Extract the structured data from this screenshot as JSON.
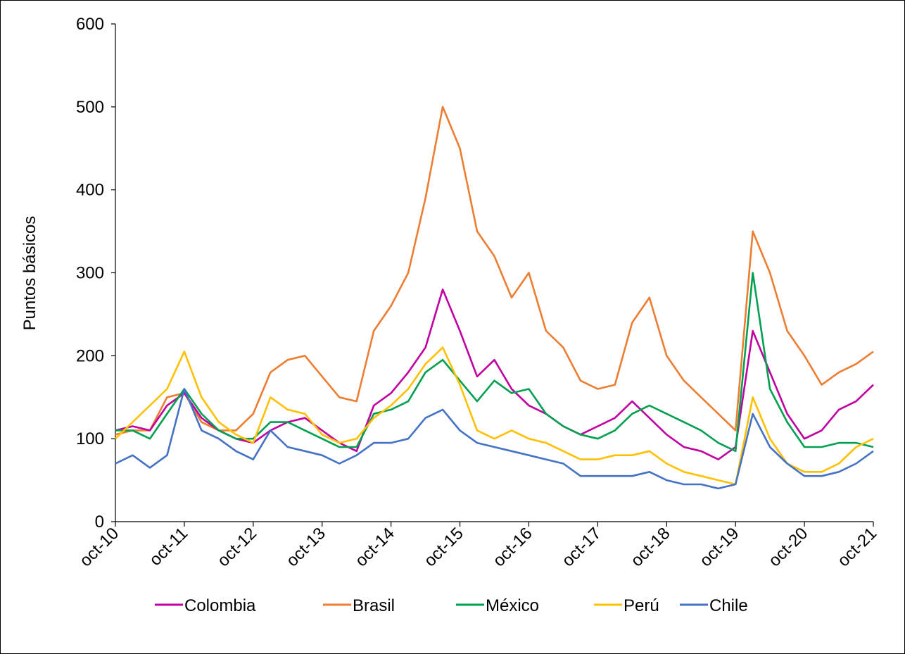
{
  "chart_data": {
    "type": "line",
    "title": "",
    "xlabel": "",
    "ylabel": "Puntos básicos",
    "ylim": [
      0,
      600
    ],
    "yticks": [
      0,
      100,
      200,
      300,
      400,
      500,
      600
    ],
    "xlim": [
      "2010-10",
      "2021-10"
    ],
    "xtick_labels": [
      "oct-10",
      "oct-11",
      "oct-12",
      "oct-13",
      "oct-14",
      "oct-15",
      "oct-16",
      "oct-17",
      "oct-18",
      "oct-19",
      "oct-20",
      "oct-21"
    ],
    "grid": false,
    "legend_position": "bottom",
    "x": [
      "2010-10",
      "2011-01",
      "2011-04",
      "2011-07",
      "2011-10",
      "2012-01",
      "2012-04",
      "2012-07",
      "2012-10",
      "2013-01",
      "2013-04",
      "2013-07",
      "2013-10",
      "2014-01",
      "2014-04",
      "2014-07",
      "2014-10",
      "2015-01",
      "2015-04",
      "2015-07",
      "2015-10",
      "2016-01",
      "2016-04",
      "2016-07",
      "2016-10",
      "2017-01",
      "2017-04",
      "2017-07",
      "2017-10",
      "2018-01",
      "2018-04",
      "2018-07",
      "2018-10",
      "2019-01",
      "2019-04",
      "2019-07",
      "2019-10",
      "2020-01",
      "2020-04",
      "2020-07",
      "2020-10",
      "2021-01",
      "2021-04",
      "2021-07",
      "2021-10"
    ],
    "series": [
      {
        "name": "Colombia",
        "color": "#C000A0",
        "values": [
          110,
          115,
          110,
          140,
          155,
          125,
          110,
          100,
          95,
          110,
          120,
          125,
          110,
          95,
          85,
          140,
          155,
          180,
          210,
          280,
          230,
          175,
          195,
          160,
          140,
          130,
          115,
          105,
          115,
          125,
          145,
          125,
          105,
          90,
          85,
          75,
          90,
          230,
          180,
          130,
          100,
          110,
          135,
          145,
          165
        ]
      },
      {
        "name": "Brasil",
        "color": "#ED7D31",
        "values": [
          105,
          110,
          110,
          150,
          155,
          120,
          110,
          110,
          130,
          180,
          195,
          200,
          175,
          150,
          145,
          230,
          260,
          300,
          390,
          500,
          450,
          350,
          320,
          270,
          300,
          230,
          210,
          170,
          160,
          165,
          240,
          270,
          200,
          170,
          150,
          130,
          110,
          350,
          300,
          230,
          200,
          165,
          180,
          190,
          205
        ]
      },
      {
        "name": "México",
        "color": "#00A050",
        "values": [
          110,
          110,
          100,
          130,
          160,
          130,
          110,
          100,
          100,
          120,
          120,
          110,
          100,
          90,
          90,
          130,
          135,
          145,
          180,
          195,
          170,
          145,
          170,
          155,
          160,
          130,
          115,
          105,
          100,
          110,
          130,
          140,
          130,
          120,
          110,
          95,
          85,
          300,
          160,
          120,
          90,
          90,
          95,
          95,
          90
        ]
      },
      {
        "name": "Perú",
        "color": "#FFC000",
        "values": [
          100,
          120,
          140,
          160,
          205,
          150,
          120,
          105,
          95,
          150,
          135,
          130,
          105,
          95,
          100,
          125,
          140,
          160,
          190,
          210,
          165,
          110,
          100,
          110,
          100,
          95,
          85,
          75,
          75,
          80,
          80,
          85,
          70,
          60,
          55,
          50,
          45,
          150,
          100,
          70,
          60,
          60,
          70,
          90,
          100
        ]
      },
      {
        "name": "Chile",
        "color": "#4472C4",
        "values": [
          70,
          80,
          65,
          80,
          160,
          110,
          100,
          85,
          75,
          110,
          90,
          85,
          80,
          70,
          80,
          95,
          95,
          100,
          125,
          135,
          110,
          95,
          90,
          85,
          80,
          75,
          70,
          55,
          55,
          55,
          55,
          60,
          50,
          45,
          45,
          40,
          45,
          130,
          90,
          70,
          55,
          55,
          60,
          70,
          85
        ]
      }
    ]
  }
}
